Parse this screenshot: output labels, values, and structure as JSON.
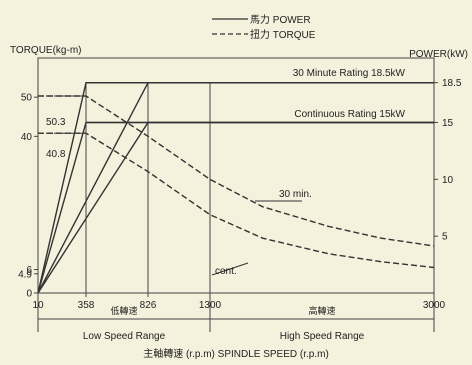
{
  "chart_data": {
    "type": "line",
    "legend": [
      {
        "label": "馬力 POWER",
        "style": "solid"
      },
      {
        "label": "扭力 TORQUE",
        "style": "dashed"
      }
    ],
    "left_axis": {
      "label": "TORQUE(kg-m)",
      "ticks": [
        0,
        4.9,
        6,
        40,
        50
      ],
      "ylim": [
        0,
        60
      ]
    },
    "right_axis": {
      "label": "POWER(kW)",
      "ticks": [
        5,
        10,
        15,
        18.5
      ],
      "ylim": [
        0,
        20.67
      ]
    },
    "x_axis": {
      "label": "主軸轉速 (r.p.m) SPINDLE SPEED (r.p.m)",
      "ticks": [
        10,
        358,
        826,
        1300,
        3000
      ],
      "range_labels": [
        {
          "text": "低轉速",
          "from": 10,
          "to": 1300
        },
        {
          "text": "高轉速",
          "from": 1300,
          "to": 3000
        }
      ],
      "range_names": [
        {
          "text": "Low Speed Range",
          "from": 10,
          "to": 1300
        },
        {
          "text": "High Speed Range",
          "from": 1300,
          "to": 3000
        }
      ]
    },
    "annotations": [
      {
        "text": "30 Minute Rating 18.5kW"
      },
      {
        "text": "Continuous Rating 15kW"
      },
      {
        "text": "50.3"
      },
      {
        "text": "40.8"
      },
      {
        "text": "30 min."
      },
      {
        "text": "cont."
      }
    ],
    "series": [
      {
        "style": "solid",
        "axis": "power",
        "x": [
          10,
          358,
          3000
        ],
        "y": [
          0,
          18.5,
          18.5
        ]
      },
      {
        "style": "solid",
        "axis": "power",
        "x": [
          10,
          826,
          3000
        ],
        "y": [
          0,
          18.5,
          18.5
        ]
      },
      {
        "style": "solid",
        "axis": "power",
        "x": [
          10,
          358,
          3000
        ],
        "y": [
          0,
          15,
          15
        ]
      },
      {
        "style": "solid",
        "axis": "power",
        "x": [
          10,
          826,
          3000
        ],
        "y": [
          0,
          15,
          15
        ]
      },
      {
        "style": "dashed",
        "axis": "torque",
        "x": [
          10,
          358,
          826,
          1300,
          1700,
          2200,
          2600,
          3000
        ],
        "y": [
          50.3,
          50.3,
          40,
          29,
          22,
          17,
          14,
          12
        ]
      },
      {
        "style": "dashed",
        "axis": "torque",
        "x": [
          10,
          358,
          826,
          1300,
          1700,
          2200,
          2600,
          3000
        ],
        "y": [
          40.8,
          40.8,
          31,
          20,
          14,
          10,
          8,
          6.5
        ]
      }
    ]
  }
}
